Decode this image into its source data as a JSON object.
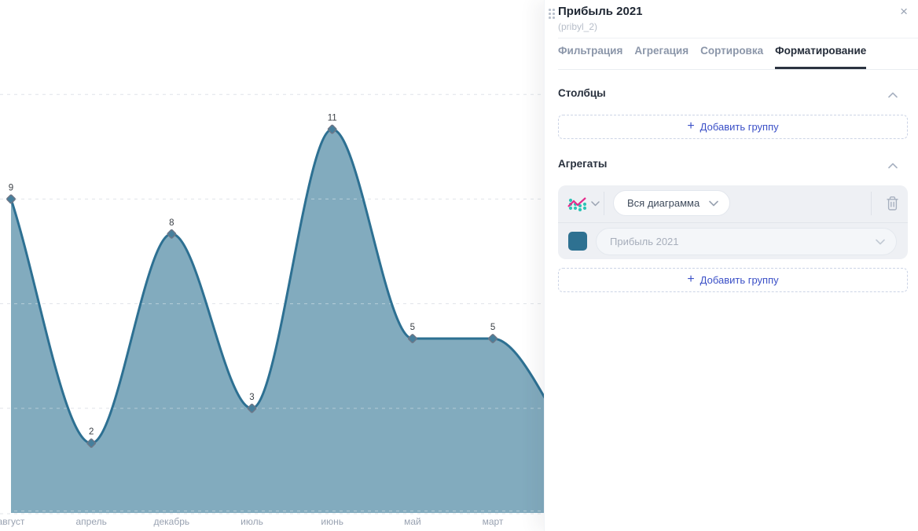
{
  "panel": {
    "title": "Прибыль 2021",
    "subtitle": "(pribyl_2)",
    "close": "×",
    "accent_color": "#3b50c7",
    "tabs": [
      {
        "label": "Фильтрация",
        "active": false
      },
      {
        "label": "Агрегация",
        "active": false
      },
      {
        "label": "Сортировка",
        "active": false
      },
      {
        "label": "Форматирование",
        "active": true
      }
    ],
    "columns_section": {
      "title": "Столбцы",
      "add_group": {
        "plus": "+",
        "label": "Добавить группу"
      }
    },
    "aggregates_section": {
      "title": "Агрегаты",
      "aggregate_card": {
        "chart_type_icon": "combo-chart-icon",
        "scope_select": {
          "value": "Вся диаграмма"
        },
        "series_select": {
          "value": "Прибыль 2021",
          "swatch_color": "#2e7191"
        },
        "delete_icon": "trash-icon"
      },
      "add_group": {
        "plus": "+",
        "label": "Добавить группу"
      }
    }
  },
  "chart_data": {
    "type": "area",
    "title": "",
    "categories": [
      "август",
      "апрель",
      "декабрь",
      "июль",
      "июнь",
      "май",
      "март"
    ],
    "values": [
      9,
      2,
      8,
      3,
      11,
      5,
      5
    ],
    "series": [
      {
        "name": "Прибыль 2021",
        "values": [
          9,
          2,
          8,
          3,
          11,
          5,
          5
        ]
      }
    ],
    "point_labels": [
      "9",
      "2",
      "8",
      "3",
      "11",
      "5",
      "5"
    ],
    "ylim": [
      0,
      12
    ],
    "y_gridlines": [
      3,
      6,
      9,
      12
    ],
    "grid_style": "dashed",
    "smooth": true,
    "marker": "diamond",
    "legend": "none",
    "continues_beyond_right_edge": true,
    "colors": {
      "line": "#2d7092",
      "fill": "#82abbe",
      "marker_fill": "#477f9c",
      "marker_stroke": "#6e7787",
      "grid": "#e0e4e9",
      "value_label": "#3b4046",
      "axis_label": "#99a2b1"
    }
  }
}
